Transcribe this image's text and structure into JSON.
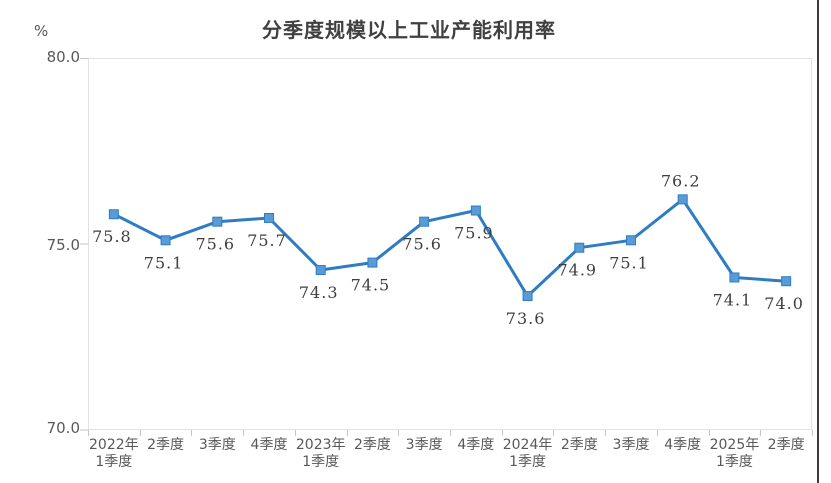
{
  "title": "分季度规模以上工业产能利用率",
  "y_axis": {
    "unit": "%",
    "tick_labels": [
      "80.0",
      "75.0",
      "70.0"
    ]
  },
  "x_axis": {
    "display_labels": [
      "2022年\n1季度",
      "2季度",
      "3季度",
      "4季度",
      "2023年\n1季度",
      "2季度",
      "3季度",
      "4季度",
      "2024年\n1季度",
      "2季度",
      "3季度",
      "4季度",
      "2025年\n1季度",
      "2季度"
    ]
  },
  "chart_data": {
    "type": "line",
    "title": "分季度规模以上工业产能利用率",
    "categories": [
      "2022年1季度",
      "2季度",
      "3季度",
      "4季度",
      "2023年1季度",
      "2季度",
      "3季度",
      "4季度",
      "2024年1季度",
      "2季度",
      "3季度",
      "4季度",
      "2025年1季度",
      "2季度"
    ],
    "values": [
      75.8,
      75.1,
      75.6,
      75.7,
      74.3,
      74.5,
      75.6,
      75.9,
      73.6,
      74.9,
      75.1,
      76.2,
      74.1,
      74.0
    ],
    "data_labels": [
      "75.8",
      "75.1",
      "75.6",
      "75.7",
      "74.3",
      "74.5",
      "75.6",
      "75.9",
      "73.6",
      "74.9",
      "75.1",
      "76.2",
      "74.1",
      "74.0"
    ],
    "label_above_indices": [
      11
    ],
    "xlabel": "",
    "ylabel": "%",
    "ylim": [
      70.0,
      80.0
    ],
    "y_ticks": [
      80.0,
      75.0,
      70.0
    ],
    "grid": false,
    "legend": "none",
    "marker": "square"
  },
  "colors": {
    "line": "#2E7CC3",
    "marker_fill": "#5B9BD5",
    "marker_stroke": "#2E7CC3",
    "plot_border": "#E2E2E2",
    "tick": "#C6C6C6",
    "axis_text": "#595959",
    "data_label_text": "#3F3F3F",
    "title_text": "#404040",
    "right_border": "#3C3C3C"
  }
}
